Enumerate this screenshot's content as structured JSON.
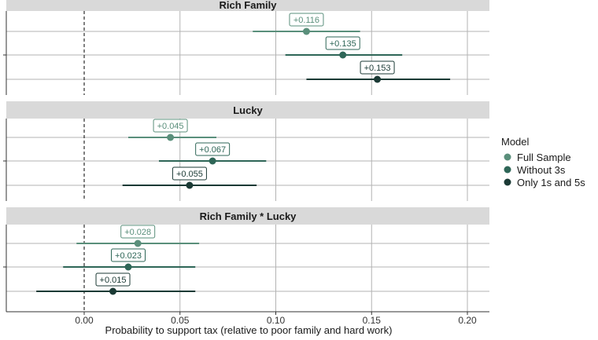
{
  "chart_data": {
    "type": "forest",
    "xlabel": "Probability to support tax (relative to poor family and hard work)",
    "xlim": [
      -0.04,
      0.21
    ],
    "xticks": [
      0.0,
      0.05,
      0.1,
      0.15,
      0.2
    ],
    "xtick_labels": [
      "0.00",
      "0.05",
      "0.10",
      "0.15",
      "0.20"
    ],
    "reference_line": 0.0,
    "legend": {
      "title": "Model",
      "position": "right",
      "entries": [
        {
          "name": "Full Sample",
          "color": "#5a8f7b"
        },
        {
          "name": "Without 3s",
          "color": "#2e6657"
        },
        {
          "name": "Only 1s and 5s",
          "color": "#1b3a35"
        }
      ]
    },
    "panels": [
      {
        "title": "Rich Family",
        "estimates": [
          {
            "model": "Full Sample",
            "value": 0.116,
            "ci": [
              0.088,
              0.144
            ],
            "label": "+0.116"
          },
          {
            "model": "Without 3s",
            "value": 0.135,
            "ci": [
              0.105,
              0.166
            ],
            "label": "+0.135"
          },
          {
            "model": "Only 1s and 5s",
            "value": 0.153,
            "ci": [
              0.116,
              0.191
            ],
            "label": "+0.153"
          }
        ]
      },
      {
        "title": "Lucky",
        "estimates": [
          {
            "model": "Full Sample",
            "value": 0.045,
            "ci": [
              0.023,
              0.069
            ],
            "label": "+0.045"
          },
          {
            "model": "Without 3s",
            "value": 0.067,
            "ci": [
              0.039,
              0.095
            ],
            "label": "+0.067"
          },
          {
            "model": "Only 1s and 5s",
            "value": 0.055,
            "ci": [
              0.02,
              0.09
            ],
            "label": "+0.055"
          }
        ]
      },
      {
        "title": "Rich Family * Lucky",
        "estimates": [
          {
            "model": "Full Sample",
            "value": 0.028,
            "ci": [
              -0.004,
              0.06
            ],
            "label": "+0.028"
          },
          {
            "model": "Without 3s",
            "value": 0.023,
            "ci": [
              -0.011,
              0.058
            ],
            "label": "+0.023"
          },
          {
            "model": "Only 1s and 5s",
            "value": 0.015,
            "ci": [
              -0.025,
              0.058
            ],
            "label": "+0.015"
          }
        ]
      }
    ]
  }
}
